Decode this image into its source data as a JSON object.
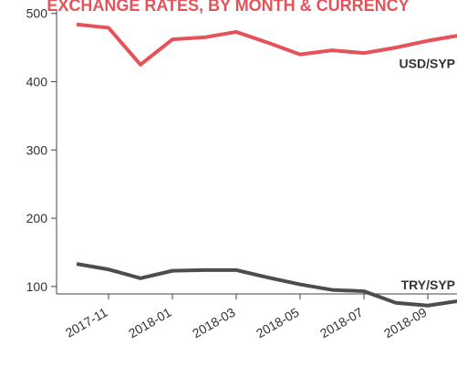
{
  "chart_data": {
    "type": "line",
    "title": "EXCHANGE RATES, BY MONTH & CURRENCY",
    "categories": [
      null,
      "2017-11",
      null,
      "2018-01",
      null,
      "2018-03",
      null,
      "2018-05",
      null,
      "2018-07",
      null,
      "2018-09",
      null
    ],
    "series": [
      {
        "name": "USD/SYP",
        "color": "#e5525a",
        "values": [
          484,
          479,
          425,
          462,
          465,
          473,
          457,
          440,
          446,
          442,
          450,
          460,
          468
        ]
      },
      {
        "name": "TRY/SYP",
        "color": "#4d4d4d",
        "values": [
          133,
          125,
          112,
          123,
          124,
          124,
          113,
          103,
          95,
          93,
          76,
          72,
          79
        ]
      }
    ],
    "ylim": [
      65,
      505
    ],
    "yticks": [
      100,
      200,
      300,
      400,
      500
    ],
    "grid": false
  }
}
